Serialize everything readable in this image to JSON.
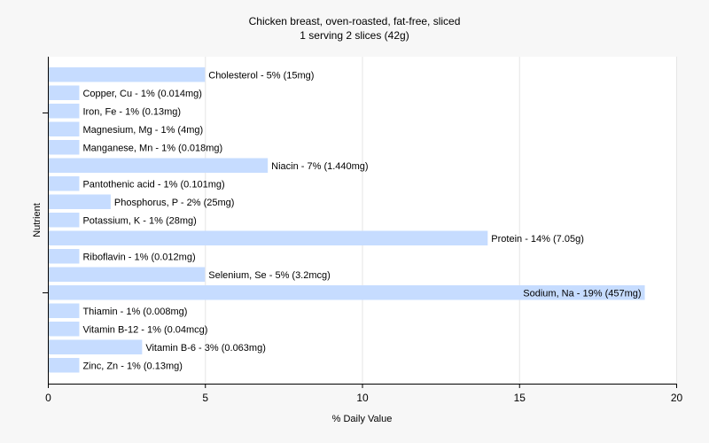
{
  "chart_data": {
    "type": "bar",
    "orientation": "horizontal",
    "title": "Chicken breast, oven-roasted, fat-free, sliced",
    "subtitle": "1 serving 2 slices (42g)",
    "xlabel": "% Daily Value",
    "ylabel": "Nutrient",
    "xlim": [
      0,
      20
    ],
    "xticks": [
      "0",
      "5",
      "10",
      "15",
      "20"
    ],
    "grid": true,
    "bar_color": "#c6dcff",
    "background_color": "#f7f7f7",
    "plot_background_color": "#ffffff",
    "categories": [
      "Cholesterol",
      "Copper, Cu",
      "Iron, Fe",
      "Magnesium, Mg",
      "Manganese, Mn",
      "Niacin",
      "Pantothenic acid",
      "Phosphorus, P",
      "Potassium, K",
      "Protein",
      "Riboflavin",
      "Selenium, Se",
      "Sodium, Na",
      "Thiamin",
      "Vitamin B-12",
      "Vitamin B-6",
      "Zinc, Zn"
    ],
    "values": [
      5,
      1,
      1,
      1,
      1,
      7,
      1,
      2,
      1,
      14,
      1,
      5,
      19,
      1,
      1,
      3,
      1
    ],
    "data_labels": [
      "Cholesterol - 5% (15mg)",
      "Copper, Cu - 1% (0.014mg)",
      "Iron, Fe - 1% (0.13mg)",
      "Magnesium, Mg - 1% (4mg)",
      "Manganese, Mn - 1% (0.018mg)",
      "Niacin - 7% (1.440mg)",
      "Pantothenic acid - 1% (0.101mg)",
      "Phosphorus, P - 2% (25mg)",
      "Potassium, K - 1% (28mg)",
      "Protein - 14% (7.05g)",
      "Riboflavin - 1% (0.012mg)",
      "Selenium, Se - 5% (3.2mcg)",
      "Sodium, Na - 19% (457mg)",
      "Thiamin - 1% (0.008mg)",
      "Vitamin B-12 - 1% (0.04mcg)",
      "Vitamin B-6 - 3% (0.063mg)",
      "Zinc, Zn - 1% (0.13mg)"
    ]
  }
}
